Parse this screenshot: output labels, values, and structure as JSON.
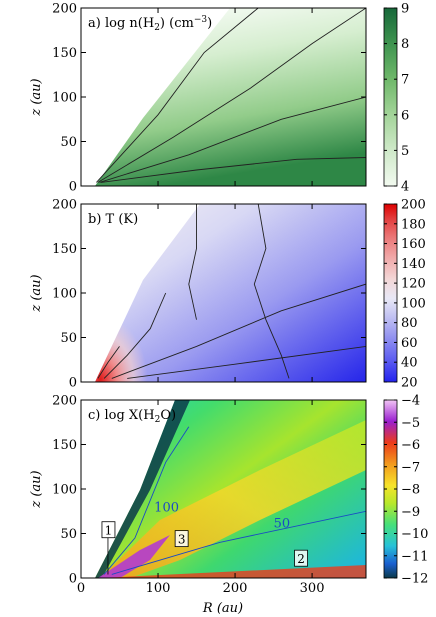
{
  "chart_data": [
    {
      "type": "heatmap",
      "panel_label": "a) log n(H",
      "panel_label_sub": "2",
      "panel_label_tail": ") (cm",
      "panel_label_sup": "−3",
      "panel_label_end": ")",
      "ylabel": "z (au)",
      "xlim": [
        0,
        370
      ],
      "ylim": [
        0,
        200
      ],
      "yticks": [
        0,
        50,
        100,
        150,
        200
      ],
      "colorbar": {
        "ticks": [
          4,
          5,
          6,
          7,
          8,
          9
        ],
        "range": [
          4,
          9
        ],
        "colors": [
          "#f2faf0",
          "#cfe9c9",
          "#a3d499",
          "#6fb86a",
          "#3f9450",
          "#17683a"
        ]
      },
      "contours": [
        {
          "level": 5,
          "points": [
            [
              20,
              4
            ],
            [
              100,
              80
            ],
            [
              160,
              150
            ],
            [
              230,
              200
            ]
          ]
        },
        {
          "level": 6,
          "points": [
            [
              22,
              4
            ],
            [
              120,
              55
            ],
            [
              220,
              110
            ],
            [
              300,
              160
            ],
            [
              370,
              200
            ]
          ]
        },
        {
          "level": 7,
          "points": [
            [
              24,
              4
            ],
            [
              140,
              35
            ],
            [
              260,
              75
            ],
            [
              370,
              100
            ]
          ]
        },
        {
          "level": 8,
          "points": [
            [
              26,
              4
            ],
            [
              150,
              18
            ],
            [
              280,
              30
            ],
            [
              370,
              32
            ]
          ]
        }
      ]
    },
    {
      "type": "heatmap",
      "panel_label": "b) T (K)",
      "ylabel": "z (au)",
      "xlim": [
        0,
        370
      ],
      "ylim": [
        0,
        200
      ],
      "yticks": [
        0,
        50,
        100,
        150,
        200
      ],
      "colorbar": {
        "ticks": [
          20,
          40,
          60,
          80,
          100,
          120,
          140,
          160,
          180,
          200
        ],
        "range": [
          20,
          200
        ],
        "colors": [
          "#2222ee",
          "#5b5bf0",
          "#9292f0",
          "#c3c3f2",
          "#e8e8f6",
          "#f3d6d6",
          "#f0a8a8",
          "#ea7474",
          "#e23c3c",
          "#dd0000"
        ]
      },
      "contours": [
        {
          "level": 200,
          "points": [
            [
              22,
              4
            ],
            [
              35,
              22
            ],
            [
              50,
              40
            ]
          ]
        },
        {
          "level": 120,
          "points": [
            [
              30,
              4
            ],
            [
              60,
              30
            ],
            [
              90,
              60
            ],
            [
              110,
              100
            ]
          ]
        },
        {
          "level": 60,
          "points": [
            [
              40,
              4
            ],
            [
              150,
              40
            ],
            [
              260,
              80
            ],
            [
              370,
              110
            ]
          ]
        },
        {
          "level": 40,
          "points": [
            [
              60,
              4
            ],
            [
              200,
              20
            ],
            [
              370,
              40
            ]
          ]
        },
        {
          "level": 80,
          "points": [
            [
              150,
              200
            ],
            [
              150,
              150
            ],
            [
              140,
              110
            ],
            [
              150,
              70
            ]
          ]
        },
        {
          "level": 80,
          "points": [
            [
              230,
              200
            ],
            [
              240,
              150
            ],
            [
              225,
              110
            ],
            [
              240,
              70
            ],
            [
              260,
              30
            ],
            [
              270,
              4
            ]
          ]
        }
      ]
    },
    {
      "type": "heatmap",
      "panel_label": "c) log X(H",
      "panel_label_sub": "2",
      "panel_label_tail": "O)",
      "ylabel": "z (au)",
      "xlabel": "R (au)",
      "xlim": [
        0,
        370
      ],
      "ylim": [
        0,
        200
      ],
      "xticks": [
        0,
        100,
        200,
        300
      ],
      "yticks": [
        0,
        50,
        100,
        150,
        200
      ],
      "colorbar": {
        "ticks": [
          -12,
          -11,
          -10,
          -9,
          -8,
          -7,
          -6,
          -5,
          -4
        ],
        "range": [
          -12,
          -4
        ],
        "colors": [
          "#0b3a4a",
          "#1a5fd0",
          "#27c2d8",
          "#46e07a",
          "#b8e82b",
          "#f7e32a",
          "#f29a1e",
          "#ec3b1b",
          "#9a1fd0",
          "#f3c6f5"
        ]
      },
      "annotations": [
        {
          "text": "100",
          "x": 95,
          "y": 75,
          "color": "#1a4bc4"
        },
        {
          "text": "50",
          "x": 250,
          "y": 57,
          "color": "#1a4bc4"
        }
      ],
      "boxes": [
        {
          "text": "1",
          "x": 35,
          "y": 52
        },
        {
          "text": "3",
          "x": 130,
          "y": 42
        },
        {
          "text": "2",
          "x": 285,
          "y": 20
        }
      ],
      "contours": [
        {
          "level": 100,
          "points": [
            [
              30,
              4
            ],
            [
              70,
              45
            ],
            [
              110,
              130
            ],
            [
              140,
              170
            ]
          ]
        },
        {
          "level": 50,
          "points": [
            [
              40,
              4
            ],
            [
              180,
              40
            ],
            [
              370,
              75
            ]
          ]
        }
      ]
    }
  ]
}
